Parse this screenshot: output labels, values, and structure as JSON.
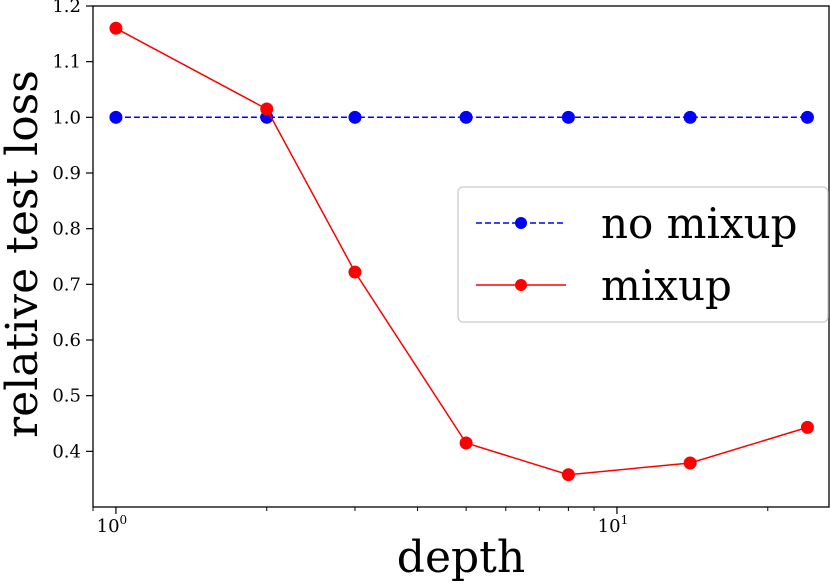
{
  "chart_data": {
    "type": "line",
    "xlabel": "depth",
    "ylabel": "relative test loss",
    "xscale": "log",
    "xlim": [
      0.9,
      26.5
    ],
    "ylim": [
      0.3,
      1.2
    ],
    "x_ticks": [
      {
        "value": 1,
        "base": "10",
        "exp": "0"
      },
      {
        "value": 10,
        "base": "10",
        "exp": "1"
      }
    ],
    "y_ticks": [
      {
        "value": 0.4,
        "label": "0.4"
      },
      {
        "value": 0.5,
        "label": "0.5"
      },
      {
        "value": 0.6,
        "label": "0.6"
      },
      {
        "value": 0.7,
        "label": "0.7"
      },
      {
        "value": 0.8,
        "label": "0.8"
      },
      {
        "value": 0.9,
        "label": "0.9"
      },
      {
        "value": 1.0,
        "label": "1.0"
      },
      {
        "value": 1.1,
        "label": "1.1"
      },
      {
        "value": 1.2,
        "label": "1.2"
      }
    ],
    "x": [
      1,
      2,
      3,
      5,
      8,
      14,
      24
    ],
    "series": [
      {
        "name": "no mixup",
        "values": [
          1.0,
          1.0,
          1.0,
          1.0,
          1.0,
          1.0,
          1.0
        ],
        "color": "#0000ff",
        "linestyle": "dashed",
        "marker": "circle"
      },
      {
        "name": "mixup",
        "values": [
          1.16,
          1.015,
          0.722,
          0.415,
          0.358,
          0.379,
          0.443
        ],
        "color": "#ff0000",
        "linestyle": "solid",
        "marker": "circle"
      }
    ],
    "legend_position": "center-right",
    "grid": false
  }
}
